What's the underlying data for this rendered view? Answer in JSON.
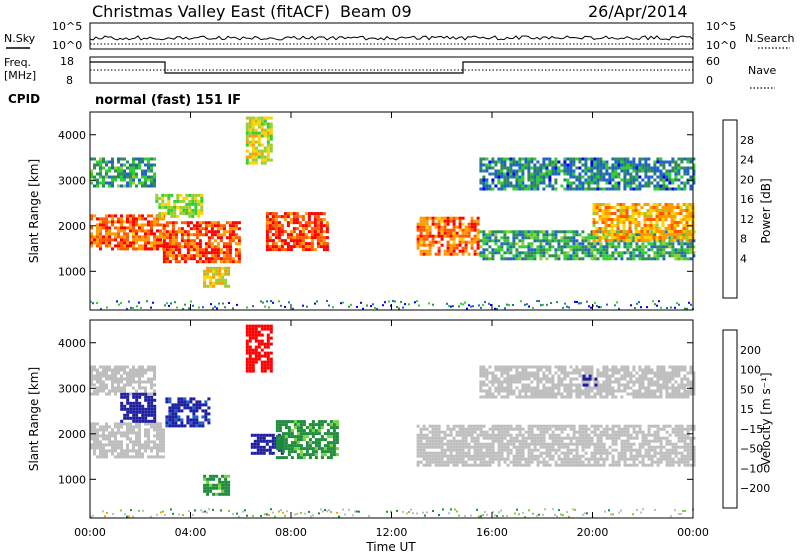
{
  "header": {
    "station": "Christmas Valley East (fitACF)",
    "beam": "Beam 09",
    "date": "26/Apr/2014"
  },
  "panels": {
    "nsky_label": "N.Sky",
    "nsky_ticks": [
      "10^5",
      "10^0"
    ],
    "nsearch_label": "N.Search",
    "nsearch_ticks": [
      "10^5",
      "10^0"
    ],
    "freq_label_1": "Freq.",
    "freq_label_2": "[MHz]",
    "freq_ticks": [
      "18",
      "8"
    ],
    "nave_label": "Nave",
    "nave_ticks": [
      "60",
      "0"
    ],
    "cpid_label": "CPID",
    "cpid_value": "normal (fast) 151 IF"
  },
  "colorbars": {
    "power_label": "Power [dB]",
    "power_ticks": [
      "28",
      "24",
      "20",
      "16",
      "12",
      "8",
      "4"
    ],
    "power_colors": [
      "#ff0000",
      "#ff5a00",
      "#ff9a00",
      "#ffd200",
      "#9acd32",
      "#32cd32",
      "#2e8b57",
      "#1e64c8",
      "#0000ff"
    ],
    "velocity_label": "Velocity [m s⁻¹]",
    "velocity_ticks": [
      "200",
      "100",
      "50",
      "15",
      "−15",
      "−50",
      "−100",
      "−200"
    ],
    "velocity_colors": [
      "#1e1ea0",
      "#1e64c8",
      "#1e8c3c",
      "#78d23c",
      "#bebebe",
      "#ffa500",
      "#ff6a00",
      "#ff3c00",
      "#ff0000"
    ]
  },
  "chart_data": [
    {
      "type": "heatmap",
      "title": "Power",
      "ylabel": "Slant Range [km]",
      "xlabel": "",
      "ylim": [
        150,
        4500
      ],
      "yticks": [
        1000,
        2000,
        3000,
        4000
      ],
      "x": [
        0,
        4,
        8,
        12,
        16,
        20,
        24
      ],
      "colorbar": {
        "label": "Power [dB]",
        "min": 0,
        "max": 32
      },
      "echo_regions": [
        {
          "t0": 0.0,
          "t1": 2.9,
          "r0": 1500,
          "r1": 2250,
          "value": 26
        },
        {
          "t0": 0.0,
          "t1": 2.6,
          "r0": 2900,
          "r1": 3500,
          "value": 10
        },
        {
          "t0": 2.9,
          "t1": 6.0,
          "r0": 1200,
          "r1": 2100,
          "value": 27
        },
        {
          "t0": 2.6,
          "t1": 4.5,
          "r0": 2200,
          "r1": 2700,
          "value": 16
        },
        {
          "t0": 4.5,
          "t1": 5.5,
          "r0": 700,
          "r1": 1100,
          "value": 20
        },
        {
          "t0": 6.2,
          "t1": 7.2,
          "r0": 3400,
          "r1": 4400,
          "value": 18
        },
        {
          "t0": 7.0,
          "t1": 9.5,
          "r0": 1500,
          "r1": 2300,
          "value": 28
        },
        {
          "t0": 13.0,
          "t1": 15.5,
          "r0": 1400,
          "r1": 2200,
          "value": 26
        },
        {
          "t0": 15.5,
          "t1": 24.0,
          "r0": 1300,
          "r1": 1900,
          "value": 10
        },
        {
          "t0": 15.5,
          "t1": 24.0,
          "r0": 2800,
          "r1": 3500,
          "value": 8
        },
        {
          "t0": 20.0,
          "t1": 24.0,
          "r0": 1700,
          "r1": 2500,
          "value": 22
        }
      ]
    },
    {
      "type": "heatmap",
      "title": "Velocity",
      "ylabel": "Slant Range [km]",
      "xlabel": "Time UT",
      "ylim": [
        150,
        4500
      ],
      "yticks": [
        1000,
        2000,
        3000,
        4000
      ],
      "x": [
        0,
        4,
        8,
        12,
        16,
        20,
        24
      ],
      "xtick_labels": [
        "00:00",
        "04:00",
        "08:00",
        "12:00",
        "16:00",
        "20:00",
        "00:00"
      ],
      "colorbar": {
        "label": "Velocity [m s⁻¹]",
        "min": -200,
        "max": 200
      },
      "echo_regions": [
        {
          "t0": 0.0,
          "t1": 2.9,
          "r0": 1500,
          "r1": 2250,
          "value": 0
        },
        {
          "t0": 0.0,
          "t1": 2.6,
          "r0": 2900,
          "r1": 3500,
          "value": 0
        },
        {
          "t0": 1.2,
          "t1": 2.6,
          "r0": 2300,
          "r1": 2900,
          "value": 180
        },
        {
          "t0": 3.0,
          "t1": 4.7,
          "r0": 2200,
          "r1": 2800,
          "value": 160
        },
        {
          "t0": 4.5,
          "t1": 5.5,
          "r0": 700,
          "r1": 1100,
          "value": 40
        },
        {
          "t0": 6.2,
          "t1": 7.2,
          "r0": 3400,
          "r1": 4400,
          "value": -180
        },
        {
          "t0": 6.4,
          "t1": 7.6,
          "r0": 1600,
          "r1": 2000,
          "value": 200
        },
        {
          "t0": 7.4,
          "t1": 9.8,
          "r0": 1500,
          "r1": 2300,
          "value": 40
        },
        {
          "t0": 13.0,
          "t1": 24.0,
          "r0": 1300,
          "r1": 2200,
          "value": 0
        },
        {
          "t0": 15.5,
          "t1": 24.0,
          "r0": 2800,
          "r1": 3500,
          "value": 0
        },
        {
          "t0": 19.6,
          "t1": 20.2,
          "r0": 3100,
          "r1": 3300,
          "value": 180
        }
      ]
    }
  ]
}
